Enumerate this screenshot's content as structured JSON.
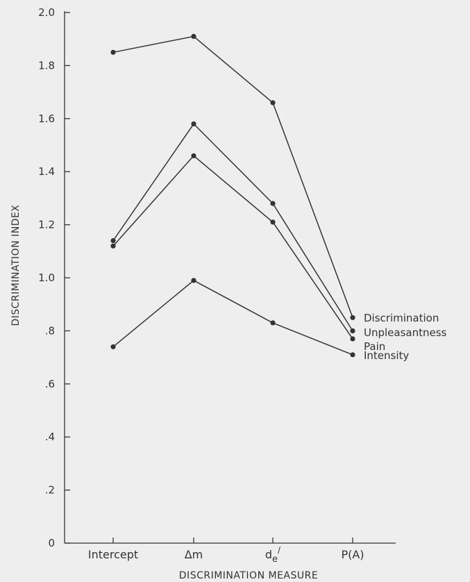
{
  "chart_data": {
    "type": "line",
    "xlabel": "DISCRIMINATION MEASURE",
    "ylabel": "DISCRIMINATION INDEX",
    "categories": [
      "Intercept",
      "Δm",
      "de",
      "P(A)"
    ],
    "x_tick_superscript": [
      "",
      "",
      "/",
      ""
    ],
    "y_ticks": [
      0,
      0.2,
      0.4,
      0.6,
      0.8,
      1.0,
      1.2,
      1.4,
      1.6,
      1.8,
      2.0
    ],
    "y_tick_labels": [
      "0",
      ".2",
      ".4",
      ".6",
      ".8",
      "1.0",
      "1.2",
      "1.4",
      "1.6",
      "1.8",
      "2.0"
    ],
    "ylim": [
      0,
      2.0
    ],
    "grid": false,
    "series": [
      {
        "name": "Discrimination",
        "values": [
          1.85,
          1.91,
          1.66,
          0.85
        ]
      },
      {
        "name": "Unpleasantness",
        "values": [
          1.14,
          1.58,
          1.28,
          0.8
        ]
      },
      {
        "name": "Pain",
        "values": [
          1.12,
          1.46,
          1.21,
          0.77
        ]
      },
      {
        "name": "Intensity",
        "values": [
          0.74,
          0.99,
          0.83,
          0.71
        ]
      }
    ],
    "legend": "right, labels next to line ends"
  }
}
